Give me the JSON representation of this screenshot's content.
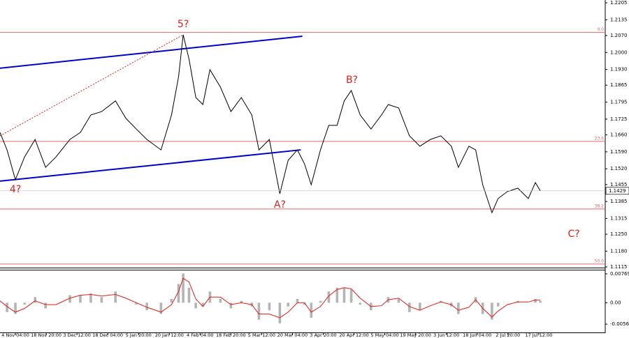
{
  "chart_data": {
    "type": "line",
    "x": [
      0,
      2.3,
      5,
      8,
      11.4,
      14.8,
      18.2,
      22.7,
      26.1,
      29.5,
      33,
      37.5,
      40.9,
      44.3,
      47.7,
      52.3,
      55.7,
      58,
      59.5,
      61.4,
      63.6,
      65.9,
      68.2,
      71.6,
      75,
      78.4,
      81.8,
      84.1,
      87.5,
      90.9,
      93.6,
      96.6,
      98.9,
      101.1,
      104.1,
      106.8,
      109.5,
      111.8,
      114.1,
      117,
      120.5,
      123.9,
      126.1,
      129.5,
      133,
      136.4,
      139.8,
      143.2,
      146.6,
      148.9,
      152.3,
      154.5,
      156.8,
      159.8,
      161.8,
      164.8,
      168.2,
      171.6,
      173.9,
      175.5
    ],
    "series": [
      {
        "color": "#000000",
        "values": [
          1.167,
          1.1598,
          1.1475,
          1.1569,
          1.1641,
          1.1526,
          1.1569,
          1.1641,
          1.167,
          1.1742,
          1.1756,
          1.18,
          1.1728,
          1.1684,
          1.1641,
          1.1598,
          1.1742,
          1.19,
          1.2073,
          1.1972,
          1.1814,
          1.1785,
          1.1929,
          1.1857,
          1.1756,
          1.1814,
          1.1742,
          1.1598,
          1.1641,
          1.1417,
          1.1555,
          1.1598,
          1.1541,
          1.1454,
          1.1598,
          1.1699,
          1.1699,
          1.18,
          1.1843,
          1.1742,
          1.1684,
          1.1742,
          1.1785,
          1.1771,
          1.1656,
          1.1613,
          1.1641,
          1.1656,
          1.1613,
          1.1526,
          1.1613,
          1.1598,
          1.1454,
          1.1339,
          1.1397,
          1.1426,
          1.144,
          1.1397,
          1.1463,
          1.1429
        ]
      }
    ],
    "xlim": [
      0,
      196.6
    ],
    "xticks": [
      {
        "value": 5,
        "label": "4 Nov 04:00"
      },
      {
        "value": 15,
        "label": "18 Nov 20:00"
      },
      {
        "value": 25,
        "label": "3 Dec 12:00"
      },
      {
        "value": 35,
        "label": "18 Dec 04:00"
      },
      {
        "value": 45,
        "label": "5 Jan 20:00"
      },
      {
        "value": 55,
        "label": "20 Jan 12:00"
      },
      {
        "value": 65,
        "label": "4 Feb 04:00"
      },
      {
        "value": 75,
        "label": "18 Feb 20:00"
      },
      {
        "value": 85,
        "label": "5 Mar 12:00"
      },
      {
        "value": 95,
        "label": "20 Mar 04:00"
      },
      {
        "value": 105,
        "label": "3 Apr 20:00"
      },
      {
        "value": 115,
        "label": "20 Apr 12:00"
      },
      {
        "value": 125,
        "label": "5 May 04:00"
      },
      {
        "value": 135,
        "label": "19 May 20:00"
      },
      {
        "value": 145,
        "label": "3 Jun 12:00"
      },
      {
        "value": 155,
        "label": "18 Jun 04:00"
      },
      {
        "value": 165,
        "label": "2 Jul 20:00"
      },
      {
        "value": 175,
        "label": "17 Jul 12:00"
      }
    ],
    "ylim": [
      1.1115,
      1.2205
    ],
    "yticks": [
      1.2205,
      1.2135,
      {
        "value": 1.207,
        "label": "1.2070"
      },
      {
        "value": 1.2,
        "label": "1.2000"
      },
      {
        "value": 1.193,
        "label": "1.1930"
      },
      1.1865,
      1.1795,
      1.1725,
      {
        "value": 1.166,
        "label": "1.1660"
      },
      {
        "value": 1.159,
        "label": "1.1590"
      },
      {
        "value": 1.152,
        "label": "1.1520"
      },
      1.1455,
      1.1385,
      1.1315,
      {
        "value": 1.125,
        "label": "1.1250"
      },
      {
        "value": 1.118,
        "label": "1.1180"
      },
      1.1115
    ],
    "current_price": 1.1429,
    "levels": [
      {
        "value": 1.2083,
        "label": "0.0"
      },
      {
        "value": 1.1633,
        "label": "23.6"
      },
      {
        "value": 1.1354,
        "label": "38.2"
      },
      {
        "value": 1.1127,
        "label": "50.0"
      }
    ],
    "level_color": "#e06a6a",
    "trendlines": [
      {
        "x": [
          0,
          98.2
        ],
        "y": [
          1.1935,
          1.2067
        ],
        "color": "#0000cc",
        "dashed": false
      },
      {
        "x": [
          0,
          97.7
        ],
        "y": [
          1.1469,
          1.1598
        ],
        "color": "#0000cc",
        "dashed": false
      },
      {
        "x": [
          0,
          59.5
        ],
        "y": [
          1.1656,
          1.2073
        ],
        "color": "#e0201a",
        "dashed": true
      }
    ],
    "annotations": [
      {
        "text": "5?",
        "x": 59.5,
        "y": 1.2116
      },
      {
        "text": "4?",
        "x": 5,
        "y": 1.1434
      },
      {
        "text": "A?",
        "x": 90.9,
        "y": 1.1371
      },
      {
        "text": "B?",
        "x": 114.3,
        "y": 1.1886
      },
      {
        "text": "C?",
        "x": 186.4,
        "y": 1.125
      }
    ],
    "oscillator": {
      "ylim": [
        -0.0079,
        0.0086
      ],
      "yticks": [
        0.00769,
        {
          "value": 0,
          "label": "0.00"
        },
        -0.00569
      ],
      "histogram": {
        "color": "#b4b4b4",
        "values": [
          0.0,
          -0.0025,
          -0.003,
          -0.0005,
          0.0015,
          -0.0015,
          0.0,
          0.002,
          0.002,
          0.0025,
          0.0015,
          0.003,
          0.0,
          -0.0005,
          -0.002,
          -0.003,
          0.001,
          0.005,
          0.0078,
          0.004,
          -0.0015,
          -0.001,
          0.003,
          0.001,
          -0.0015,
          0.0005,
          -0.001,
          -0.0045,
          -0.002,
          -0.0055,
          -0.001,
          0.001,
          -0.0005,
          -0.004,
          0.0005,
          0.003,
          0.004,
          0.004,
          0.0035,
          -0.0005,
          -0.002,
          0.0,
          0.0015,
          0.001,
          -0.0025,
          -0.002,
          0.0,
          0.0005,
          -0.001,
          -0.003,
          0.0,
          0.0015,
          -0.003,
          -0.0045,
          -0.001,
          0.0,
          0.0005,
          0.0,
          0.001,
          0.0005
        ]
      },
      "signal": {
        "color": "#e0201a",
        "values": [
          0.0005,
          -0.001,
          -0.0025,
          -0.0015,
          0.0005,
          -0.0005,
          -0.0005,
          0.0012,
          0.002,
          0.0022,
          0.0018,
          0.0022,
          0.0012,
          0.0,
          -0.0012,
          -0.0025,
          -0.0005,
          0.003,
          0.0065,
          0.0055,
          0.001,
          -0.001,
          0.0015,
          0.0015,
          -0.0005,
          0.0,
          -0.0005,
          -0.003,
          -0.003,
          -0.004,
          -0.0025,
          0.0,
          0.0,
          -0.0025,
          -0.001,
          0.0018,
          0.0035,
          0.004,
          0.0037,
          0.0012,
          -0.001,
          -0.0008,
          0.0008,
          0.0012,
          -0.001,
          -0.002,
          -0.0008,
          0.0002,
          -0.0005,
          -0.002,
          -0.0012,
          0.0008,
          -0.0015,
          -0.0038,
          -0.0022,
          -0.0005,
          0.0002,
          0.0002,
          0.0007,
          0.0007
        ]
      }
    }
  }
}
